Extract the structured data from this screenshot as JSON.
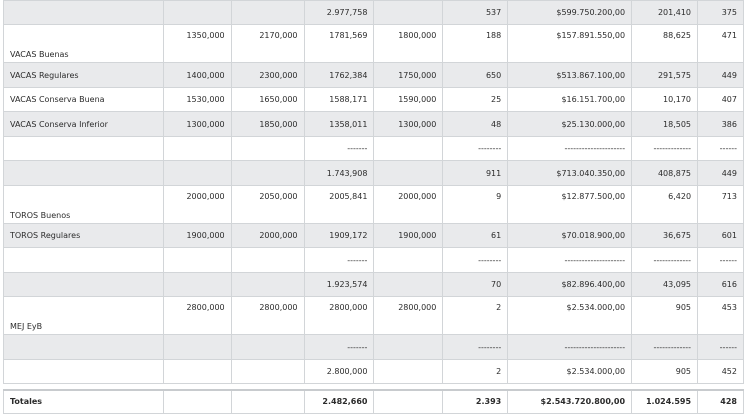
{
  "rows": [
    {
      "style": "alt",
      "h": 24,
      "cells": [
        "",
        "",
        "",
        "2.977,758",
        "",
        "537",
        "$599.750.200,00",
        "201,410",
        "375"
      ]
    },
    {
      "style": "w top",
      "h": 38,
      "cells": [
        "VACAS Buenas",
        "1350,000",
        "2170,000",
        "1781,569",
        "1800,000",
        "188",
        "$157.891.550,00",
        "88,625",
        "471"
      ]
    },
    {
      "style": "alt valign-mid",
      "h": 25,
      "cells": [
        "VACAS Regulares",
        "1400,000",
        "2300,000",
        "1762,384",
        "1750,000",
        "650",
        "$513.867.100,00",
        "291,575",
        "449"
      ]
    },
    {
      "style": "w valign-mid",
      "h": 24,
      "cells": [
        "VACAS Conserva Buena",
        "1530,000",
        "1650,000",
        "1588,171",
        "1590,000",
        "25",
        "$16.151.700,00",
        "10,170",
        "407"
      ]
    },
    {
      "style": "alt valign-mid",
      "h": 25,
      "cells": [
        "VACAS Conserva Inferior",
        "1300,000",
        "1850,000",
        "1358,011",
        "1300,000",
        "48",
        "$25.130.000,00",
        "18,505",
        "386"
      ]
    },
    {
      "style": "w",
      "h": 24,
      "cells": [
        "",
        "",
        "",
        "-------",
        "",
        "--------",
        "---------------------",
        "-------------",
        "------"
      ]
    },
    {
      "style": "alt",
      "h": 25,
      "cells": [
        "",
        "",
        "",
        "1.743,908",
        "",
        "911",
        "$713.040.350,00",
        "408,875",
        "449"
      ]
    },
    {
      "style": "w top",
      "h": 38,
      "cells": [
        "TOROS Buenos",
        "2000,000",
        "2050,000",
        "2005,841",
        "2000,000",
        "9",
        "$12.877.500,00",
        "6,420",
        "713"
      ]
    },
    {
      "style": "alt valign-mid",
      "h": 24,
      "cells": [
        "TOROS Regulares",
        "1900,000",
        "2000,000",
        "1909,172",
        "1900,000",
        "61",
        "$70.018.900,00",
        "36,675",
        "601"
      ]
    },
    {
      "style": "w",
      "h": 25,
      "cells": [
        "",
        "",
        "",
        "-------",
        "",
        "--------",
        "---------------------",
        "-------------",
        "------"
      ]
    },
    {
      "style": "alt",
      "h": 24,
      "cells": [
        "",
        "",
        "",
        "1.923,574",
        "",
        "70",
        "$82.896.400,00",
        "43,095",
        "616"
      ]
    },
    {
      "style": "w top",
      "h": 38,
      "cells": [
        "MEJ EyB",
        "2800,000",
        "2800,000",
        "2800,000",
        "2800,000",
        "2",
        "$2.534.000,00",
        "905",
        "453"
      ]
    },
    {
      "style": "alt",
      "h": 25,
      "cells": [
        "",
        "",
        "",
        "-------",
        "",
        "--------",
        "---------------------",
        "-------------",
        "------"
      ]
    },
    {
      "style": "w",
      "h": 24,
      "cells": [
        "",
        "",
        "",
        "2.800,000",
        "",
        "2",
        "$2.534.000,00",
        "905",
        "452"
      ]
    }
  ],
  "totals": [
    "Totales",
    "",
    "",
    "2.482,660",
    "",
    "2.393",
    "$2.543.720.800,00",
    "1.024.595",
    "428"
  ]
}
